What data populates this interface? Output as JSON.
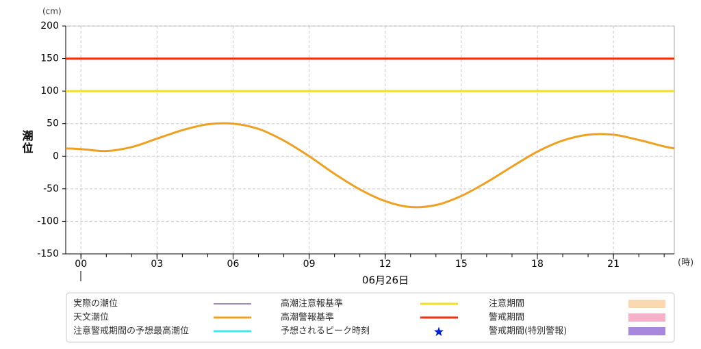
{
  "chart_data": {
    "type": "line",
    "y_unit": "(cm)",
    "x_unit": "(時)",
    "ylabel": "潮位",
    "date_label": "06月26日",
    "xlim": [
      -0.6,
      23.4
    ],
    "ylim": [
      -150,
      200
    ],
    "yticks": [
      -150,
      -100,
      -50,
      0,
      50,
      100,
      150,
      200
    ],
    "xticks": [
      {
        "value": 0,
        "label": "00"
      },
      {
        "value": 3,
        "label": "03"
      },
      {
        "value": 6,
        "label": "06"
      },
      {
        "value": 9,
        "label": "09"
      },
      {
        "value": 12,
        "label": "12"
      },
      {
        "value": 15,
        "label": "15"
      },
      {
        "value": 18,
        "label": "18"
      },
      {
        "value": 21,
        "label": "21"
      }
    ],
    "xminorticks": [
      0,
      1,
      2,
      3,
      4,
      5,
      6,
      7,
      8,
      9,
      10,
      11,
      12,
      13,
      14,
      15,
      16,
      17,
      18,
      19,
      20,
      21,
      22,
      23
    ],
    "grid": true,
    "series": [
      {
        "name": "実際の潮位",
        "color": "#3c1a78",
        "x": [],
        "values": []
      },
      {
        "name": "天文潮位",
        "color": "#f0a020",
        "x": [
          -0.6,
          0,
          1,
          2,
          3,
          4,
          5,
          6,
          7,
          8,
          9,
          10,
          11,
          12,
          13,
          14,
          15,
          16,
          17,
          18,
          19,
          20,
          21,
          22,
          23,
          23.4
        ],
        "values": [
          12,
          11,
          8,
          14,
          27,
          40,
          49,
          50,
          42,
          24,
          0,
          -27,
          -51,
          -69,
          -78,
          -75,
          -61,
          -40,
          -16,
          7,
          24,
          33,
          33,
          25,
          15,
          12
        ]
      },
      {
        "name": "注意警戒期間の予想最高潮位",
        "color": "#40e8f0",
        "x": [],
        "values": []
      }
    ],
    "reference_lines": [
      {
        "name": "高潮注意報基準",
        "value": 100,
        "color": "#f0e020"
      },
      {
        "name": "高潮警報基準",
        "value": 150,
        "color": "#f03010"
      }
    ],
    "markers": [
      {
        "name": "予想されるピーク時刻",
        "color": "#0020d0"
      }
    ],
    "periods": [
      {
        "name": "注意期間",
        "color": "#fbd9b0"
      },
      {
        "name": "警戒期間",
        "color": "#f6b0c8"
      },
      {
        "name": "警戒期間(特別警報)",
        "color": "#a888dc"
      }
    ]
  }
}
